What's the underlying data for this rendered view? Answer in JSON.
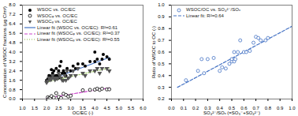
{
  "chart_data": [
    {
      "type": "scatter",
      "xlabel": "OC/EC (-)",
      "ylabel": "Concentration of WSOC fractions (μg C/m³)",
      "xlim": [
        1.0,
        6.0
      ],
      "ylim": [
        0.0,
        8.0
      ],
      "xticks": [
        {
          "value": 1.0,
          "label": "1.0"
        },
        1.5,
        {
          "value": 2.0,
          "label": "2.0"
        },
        2.5,
        {
          "value": 3.0,
          "label": "3.0"
        },
        3.5,
        {
          "value": 4.0,
          "label": "4.0"
        },
        4.5,
        {
          "value": 5.0,
          "label": "5.0"
        },
        5.5,
        {
          "value": 6.0,
          "label": "6.0"
        }
      ],
      "yticks": [
        {
          "value": 0.0,
          "label": "0.0"
        },
        0.8,
        1.6,
        2.4,
        3.2,
        {
          "value": 4.0,
          "label": "4.0"
        },
        4.8,
        5.6,
        6.4,
        7.2,
        {
          "value": 8.0,
          "label": "8.0"
        }
      ],
      "grid": false,
      "legend": "upper left",
      "series": [
        {
          "name": "WSOC vs. OC/EC",
          "type": "scatter",
          "marker": "circle",
          "color": "black",
          "x": [
            2.0,
            2.05,
            2.1,
            2.15,
            2.2,
            2.2,
            2.25,
            2.3,
            2.3,
            2.35,
            2.4,
            2.4,
            2.45,
            2.5,
            2.5,
            2.55,
            2.6,
            2.65,
            2.7,
            2.75,
            2.8,
            2.85,
            2.9,
            3.0,
            3.1,
            3.2,
            3.3,
            3.5,
            3.6,
            3.8,
            4.0,
            4.0,
            4.1,
            4.2,
            4.3,
            4.35,
            4.5,
            4.6
          ],
          "values": [
            1.6,
            1.7,
            2.0,
            1.8,
            2.0,
            2.5,
            2.2,
            2.0,
            2.4,
            1.8,
            2.6,
            2.0,
            2.0,
            2.4,
            1.8,
            2.8,
            3.2,
            2.2,
            2.4,
            2.2,
            2.0,
            2.6,
            1.8,
            2.4,
            2.8,
            2.6,
            3.0,
            3.0,
            2.8,
            3.2,
            3.2,
            4.0,
            3.4,
            3.0,
            3.4,
            3.8,
            3.6,
            3.4
          ]
        },
        {
          "name": "WSOCᵩ vs. OC/EC",
          "type": "scatter",
          "marker": "open_circle",
          "color": "black",
          "x": [
            2.05,
            2.1,
            2.15,
            2.2,
            2.3,
            2.4,
            2.5,
            2.6,
            2.7,
            2.8,
            2.9,
            3.0,
            3.5,
            3.8,
            4.0,
            4.1,
            4.2,
            4.3,
            4.5,
            4.6
          ],
          "values": [
            0.15,
            0.05,
            0.1,
            0.25,
            0.12,
            0.5,
            0.18,
            0.08,
            0.45,
            0.35,
            0.22,
            0.28,
            0.75,
            0.78,
            0.8,
            0.88,
            0.78,
            0.88,
            0.82,
            0.83
          ]
        },
        {
          "name": "WSOCᵨ vs. OC/EC",
          "type": "scatter",
          "marker": "triangle_down",
          "color": "#555555",
          "x": [
            2.0,
            2.05,
            2.1,
            2.15,
            2.2,
            2.25,
            2.3,
            2.35,
            2.4,
            2.45,
            2.5,
            2.55,
            2.6,
            2.65,
            2.7,
            2.75,
            2.8,
            2.85,
            2.9,
            3.0,
            3.1,
            3.2,
            3.3,
            3.5,
            3.6,
            3.8,
            4.0,
            4.1,
            4.2,
            4.3,
            4.5,
            4.6
          ],
          "values": [
            1.4,
            1.55,
            1.8,
            1.65,
            1.7,
            2.0,
            1.8,
            1.65,
            1.8,
            1.75,
            2.2,
            2.0,
            1.8,
            1.6,
            1.6,
            2.0,
            1.6,
            2.4,
            1.8,
            2.0,
            2.4,
            2.0,
            2.6,
            2.2,
            2.0,
            2.4,
            2.4,
            2.6,
            2.2,
            2.6,
            2.6,
            2.4
          ]
        },
        {
          "name": "Linear fit (WSOC vs. OC/EC): R²=0.61",
          "type": "line",
          "line_style": "solid",
          "color": "#4472c4",
          "x": [
            2.0,
            4.6
          ],
          "values": [
            1.55,
            3.55
          ]
        },
        {
          "name": "Linear fit (WSOCᵩ vs. OC/EC): R²=0.37",
          "type": "line",
          "line_style": "dashed",
          "color": "#cc44cc",
          "x": [
            2.0,
            4.6
          ],
          "values": [
            0.08,
            0.95
          ]
        },
        {
          "name": "Linear fit (WSOCᵨ vs. OC/EC): R²=0.55",
          "type": "line",
          "line_style": "dotted",
          "color": "#88bb44",
          "x": [
            2.0,
            4.6
          ],
          "values": [
            1.45,
            2.65
          ]
        }
      ]
    },
    {
      "type": "scatter",
      "xlabel": "SO₄²⁻/SOₓ (=SO₃⁻+SO₄²⁻)",
      "ylabel": "Ratio of WSOC to OC (-)",
      "xlim": [
        0.0,
        1.0
      ],
      "ylim": [
        0.2,
        1.0
      ],
      "xticks": [
        {
          "value": 0.0,
          "label": "0.0"
        },
        0.1,
        0.2,
        0.3,
        0.4,
        0.5,
        0.6,
        0.7,
        0.8,
        0.9,
        {
          "value": 1.0,
          "label": "1.0"
        }
      ],
      "yticks": [
        0.2,
        0.3,
        0.4,
        0.5,
        0.6,
        0.7,
        0.8,
        0.9,
        {
          "value": 1.0,
          "label": "1.0"
        }
      ],
      "grid": false,
      "legend": "upper left",
      "series": [
        {
          "name": "WSOC/OC vs. SO₄²⁻/SOₓ",
          "type": "scatter",
          "marker": "open_circle",
          "color": "#4472c4",
          "x": [
            0.12,
            0.22,
            0.25,
            0.27,
            0.3,
            0.35,
            0.4,
            0.42,
            0.45,
            0.48,
            0.5,
            0.5,
            0.52,
            0.52,
            0.53,
            0.55,
            0.57,
            0.6,
            0.62,
            0.65,
            0.68,
            0.7,
            0.72,
            0.74,
            0.78,
            0.8
          ],
          "values": [
            0.36,
            0.44,
            0.54,
            0.42,
            0.54,
            0.55,
            0.44,
            0.47,
            0.46,
            0.5,
            0.52,
            0.54,
            0.6,
            0.52,
            0.54,
            0.6,
            0.7,
            0.6,
            0.6,
            0.61,
            0.68,
            0.73,
            0.72,
            0.7,
            0.7,
            0.72
          ]
        },
        {
          "name": "Linear fit: R²=0.64",
          "type": "line",
          "line_style": "dashed",
          "color": "#4472c4",
          "x": [
            0.05,
            1.0
          ],
          "values": [
            0.3,
            0.82
          ]
        }
      ]
    }
  ]
}
